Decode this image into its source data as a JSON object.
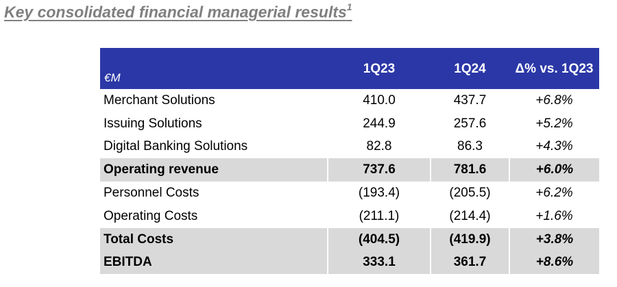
{
  "title": "Key consolidated financial managerial results",
  "title_footnote": "1",
  "table": {
    "unit": "€M",
    "columns": [
      "1Q23",
      "1Q24",
      "Δ% vs. 1Q23"
    ],
    "rows": [
      {
        "label": "Merchant Solutions",
        "q23": "410.0",
        "q24": "437.7",
        "delta": "+6.8%"
      },
      {
        "label": "Issuing Solutions",
        "q23": "244.9",
        "q24": "257.6",
        "delta": "+5.2%"
      },
      {
        "label": "Digital Banking Solutions",
        "q23": "82.8",
        "q24": "86.3",
        "delta": "+4.3%"
      },
      {
        "label": "Operating revenue",
        "q23": "737.6",
        "q24": "781.6",
        "delta": "+6.0%"
      },
      {
        "label": "Personnel Costs",
        "q23": "(193.4)",
        "q24": "(205.5)",
        "delta": "+6.2%"
      },
      {
        "label": "Operating Costs",
        "q23": "(211.1)",
        "q24": "(214.4)",
        "delta": "+1.6%"
      },
      {
        "label": "Total Costs",
        "q23": "(404.5)",
        "q24": "(419.9)",
        "delta": "+3.8%"
      },
      {
        "label": "EBITDA",
        "q23": "333.1",
        "q24": "361.7",
        "delta": "+8.6%"
      }
    ]
  },
  "colors": {
    "header_bg": "#2b37a6",
    "total_bg": "#d9d9d9",
    "title": "#7f7f7f"
  }
}
